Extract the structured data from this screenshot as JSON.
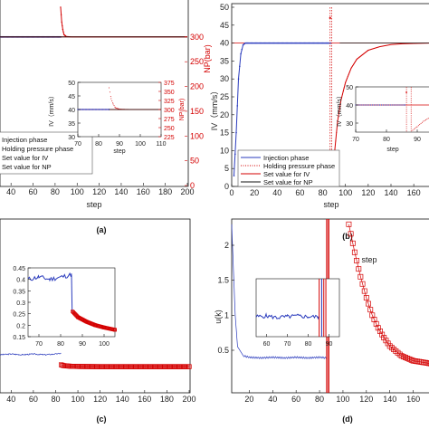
{
  "chart_data": [
    {
      "panel": "(a)",
      "type": "line",
      "xlabel": "step",
      "ylabel_right": "NP(bar)",
      "x_ticks": [
        "40",
        "60",
        "80",
        "100",
        "120",
        "140",
        "160",
        "180",
        "200"
      ],
      "xlim": [
        30,
        200
      ],
      "yleft_ticks": [],
      "yright_ticks": [
        "300",
        "250",
        "200",
        "150",
        "100",
        "50",
        "0"
      ],
      "yright_lim": [
        0,
        360
      ],
      "series": [
        {
          "name": "Injection phase",
          "color": "#2a3bbd",
          "axis": "left",
          "x": [
            30,
            40,
            50,
            60,
            70,
            80,
            85
          ],
          "y": [
            40,
            40,
            40,
            40,
            40,
            40,
            40
          ]
        },
        {
          "name": "Holding pressure phase",
          "color": "#d40000",
          "axis": "right",
          "x": [
            85,
            86,
            87,
            88,
            90,
            95,
            100,
            120,
            150,
            200
          ],
          "y": [
            360,
            330,
            315,
            305,
            301,
            300,
            300,
            300,
            300,
            300
          ]
        },
        {
          "name": "Set value for IV",
          "color": "#d40000",
          "axis": "left",
          "x": [
            30,
            200
          ],
          "y": [
            40,
            40
          ]
        },
        {
          "name": "Set value for NP",
          "color": "#111111",
          "axis": "right",
          "x": [
            30,
            200
          ],
          "y": [
            300,
            300
          ]
        }
      ],
      "legend": [
        "Injection phase",
        "Holding pressure phase",
        "Set value for IV",
        "Set value for NP"
      ],
      "inset": {
        "xlabel": "step",
        "ylabel_left": "IV（mm/s）",
        "ylabel_right": "NP(bar)",
        "x_ticks": [
          "70",
          "80",
          "90",
          "100",
          "110"
        ],
        "xlim": [
          70,
          110
        ],
        "yleft_ticks": [
          "50",
          "45",
          "40",
          "35",
          "30"
        ],
        "yleft_lim": [
          30,
          50
        ],
        "yright_ticks": [
          "375",
          "350",
          "325",
          "300",
          "275",
          "250",
          "225"
        ],
        "yright_lim": [
          225,
          375
        ]
      },
      "caption": "(a)"
    },
    {
      "panel": "(b)",
      "type": "line",
      "xlabel": "step",
      "ylabel_left": "IV（mm/s）",
      "x_ticks": [
        "0",
        "20",
        "40",
        "60",
        "80",
        "100",
        "120",
        "140",
        "160"
      ],
      "xlim": [
        0,
        175
      ],
      "yleft_ticks": [
        "0",
        "5",
        "10",
        "15",
        "20",
        "25",
        "30",
        "35",
        "40",
        "45",
        "50"
      ],
      "yleft_lim": [
        0,
        50
      ],
      "series": [
        {
          "name": "Injection phase",
          "color": "#2a3bbd",
          "x": [
            2,
            4,
            6,
            8,
            10,
            12,
            15,
            20,
            30,
            40,
            60,
            80,
            87
          ],
          "y": [
            3,
            15,
            30,
            37,
            39.5,
            40,
            40,
            40,
            40,
            40,
            40,
            40,
            40
          ]
        },
        {
          "name": "Holding pressure phase",
          "color": "#d40000",
          "x": [
            88,
            90,
            93,
            96,
            100,
            105,
            110,
            120,
            130,
            140,
            150,
            160,
            175
          ],
          "y": [
            1,
            8,
            18,
            24,
            29,
            33,
            35.5,
            38,
            39,
            39.6,
            39.8,
            39.9,
            40
          ]
        },
        {
          "name": "Set value for IV",
          "color": "#d40000",
          "x": [
            0,
            175
          ],
          "y": [
            40,
            40
          ]
        },
        {
          "name": "Set value for NP",
          "color": "#111111",
          "x": [
            0,
            175
          ],
          "y": [
            40,
            40
          ]
        }
      ],
      "legend": [
        "Injection phase",
        "Holding pressure phase",
        "Set value for IV",
        "Set value for NP"
      ],
      "inset": {
        "xlabel": "step",
        "ylabel_left": "IV（mm/s）",
        "x_ticks": [
          "70",
          "80",
          "90"
        ],
        "xlim": [
          70,
          95
        ],
        "yleft_ticks": [
          "50",
          "40",
          "30"
        ],
        "yleft_lim": [
          25,
          50
        ]
      },
      "caption": "(b)"
    },
    {
      "panel": "(c)",
      "type": "line",
      "xlabel": "",
      "x_ticks": [
        "40",
        "60",
        "80",
        "100",
        "120",
        "140",
        "160",
        "180",
        "200"
      ],
      "xlim": [
        30,
        200
      ],
      "series": [
        {
          "name": "",
          "color": "#2a3bbd",
          "x": [
            30,
            40,
            50,
            60,
            70,
            80,
            85
          ],
          "y": [
            0.4,
            0.41,
            0.4,
            0.41,
            0.4,
            0.41,
            0.42
          ]
        },
        {
          "name": "",
          "color": "#d40000",
          "x": [
            85,
            87,
            90,
            95,
            100,
            110,
            120,
            140,
            160,
            180,
            200
          ],
          "y": [
            0.27,
            0.26,
            0.255,
            0.25,
            0.248,
            0.247,
            0.246,
            0.246,
            0.246,
            0.246,
            0.246
          ]
        }
      ],
      "inset": {
        "x_ticks": [
          "70",
          "80",
          "90",
          "100"
        ],
        "xlim": [
          65,
          105
        ],
        "y_ticks": [
          "0.45",
          "0.4",
          "0.35",
          "0.3",
          "0.25",
          "0.2",
          "0.15"
        ],
        "ylim": [
          0.15,
          0.45
        ]
      },
      "caption": "(c)"
    },
    {
      "panel": "(d)",
      "type": "line",
      "xlabel": "step",
      "ylabel_left": "u(k)",
      "x_ticks": [
        "20",
        "40",
        "60",
        "80",
        "100",
        "120",
        "140",
        "160"
      ],
      "xlim": [
        5,
        175
      ],
      "yleft_ticks": [
        "0.5",
        "1",
        "1.5",
        "2"
      ],
      "yleft_lim": [
        0.2,
        2.3
      ],
      "series": [
        {
          "name": "",
          "color": "#2a3bbd",
          "x": [
            5,
            8,
            10,
            15,
            20,
            30,
            40,
            50,
            60,
            70,
            80,
            86
          ],
          "y": [
            2.3,
            1.0,
            0.55,
            0.42,
            0.4,
            0.39,
            0.4,
            0.39,
            0.4,
            0.39,
            0.4,
            0.39
          ]
        },
        {
          "name": "",
          "color": "#d40000",
          "x": [
            105,
            110,
            115,
            120,
            125,
            130,
            135,
            140,
            150,
            160,
            175
          ],
          "y": [
            2.3,
            1.9,
            1.55,
            1.25,
            1.0,
            0.82,
            0.68,
            0.56,
            0.42,
            0.35,
            0.31
          ]
        }
      ],
      "inset": {
        "x_ticks": [
          "60",
          "70",
          "80",
          "90"
        ],
        "xlim": [
          55,
          95
        ],
        "y_ticks": [],
        "ylim": [
          0,
          1
        ]
      },
      "caption": "(d)"
    }
  ]
}
